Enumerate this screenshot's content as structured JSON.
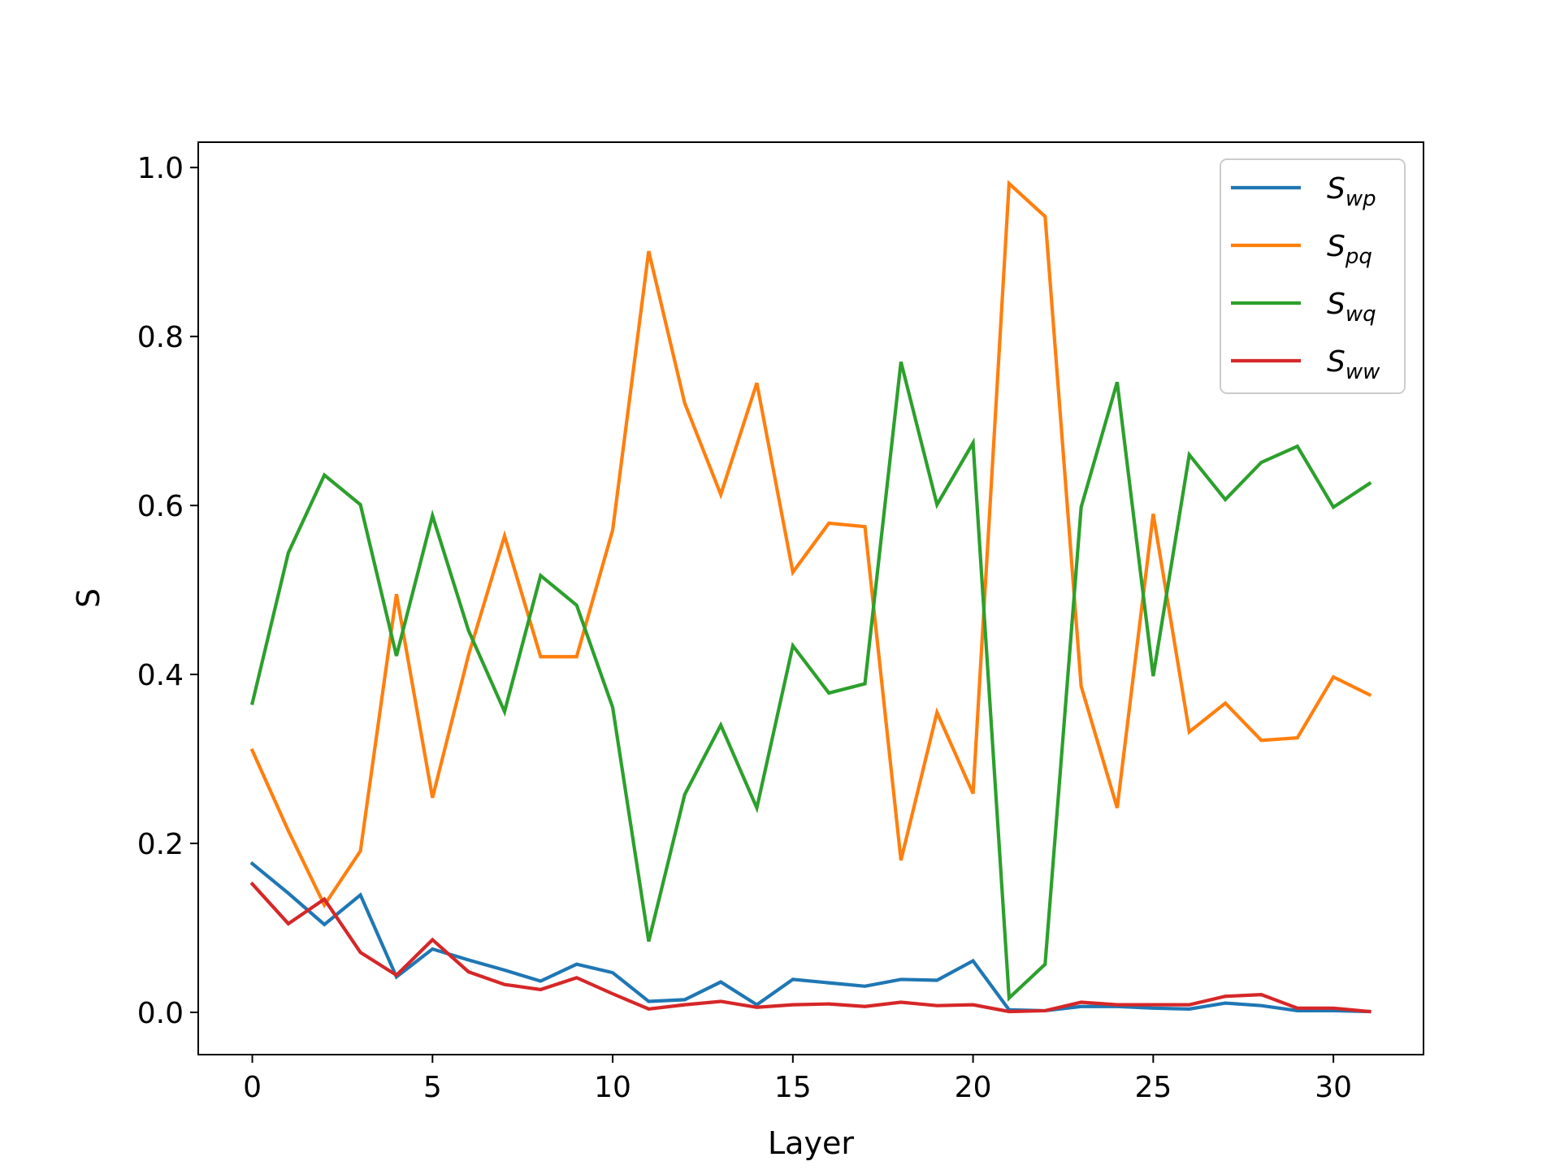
{
  "chart_data": {
    "type": "line",
    "xlabel": "Layer",
    "ylabel": "S",
    "xlim": [
      -1.5,
      32.5
    ],
    "ylim": [
      -0.05,
      1.03
    ],
    "xticks": [
      0,
      5,
      10,
      15,
      20,
      25,
      30
    ],
    "yticks": [
      0.0,
      0.2,
      0.4,
      0.6,
      0.8,
      1.0
    ],
    "xtick_labels": [
      "0",
      "5",
      "10",
      "15",
      "20",
      "25",
      "30"
    ],
    "ytick_labels": [
      "0.0",
      "0.2",
      "0.4",
      "0.6",
      "0.8",
      "1.0"
    ],
    "grid": false,
    "legend_position": "top-right",
    "x": [
      0,
      1,
      2,
      3,
      4,
      5,
      6,
      7,
      8,
      9,
      10,
      11,
      12,
      13,
      14,
      15,
      16,
      17,
      18,
      19,
      20,
      21,
      22,
      23,
      24,
      25,
      26,
      27,
      28,
      29,
      30,
      31
    ],
    "series": [
      {
        "name": "S_wp",
        "legend_main": "S",
        "legend_sub": "wp",
        "color": "#1f77b4",
        "values": [
          0.176,
          0.141,
          0.104,
          0.139,
          0.042,
          0.075,
          0.062,
          0.05,
          0.037,
          0.057,
          0.047,
          0.013,
          0.015,
          0.036,
          0.009,
          0.039,
          0.035,
          0.031,
          0.039,
          0.038,
          0.061,
          0.003,
          0.002,
          0.007,
          0.007,
          0.005,
          0.004,
          0.011,
          0.008,
          0.002,
          0.002,
          0.001
        ]
      },
      {
        "name": "S_pq",
        "legend_main": "S",
        "legend_sub": "pq",
        "color": "#ff7f0e",
        "values": [
          0.31,
          0.215,
          0.127,
          0.191,
          0.495,
          0.254,
          0.423,
          0.564,
          0.421,
          0.421,
          0.571,
          0.901,
          0.721,
          0.613,
          0.745,
          0.521,
          0.579,
          0.575,
          0.18,
          0.355,
          0.259,
          0.981,
          0.942,
          0.386,
          0.242,
          0.59,
          0.332,
          0.366,
          0.322,
          0.325,
          0.397,
          0.376
        ]
      },
      {
        "name": "S_wq",
        "legend_main": "S",
        "legend_sub": "wq",
        "color": "#2ca02c",
        "values": [
          0.366,
          0.544,
          0.636,
          0.601,
          0.422,
          0.588,
          0.452,
          0.356,
          0.517,
          0.482,
          0.361,
          0.084,
          0.258,
          0.34,
          0.242,
          0.434,
          0.378,
          0.389,
          0.77,
          0.601,
          0.674,
          0.017,
          0.057,
          0.598,
          0.746,
          0.398,
          0.66,
          0.607,
          0.651,
          0.67,
          0.598,
          0.626
        ]
      },
      {
        "name": "S_ww",
        "legend_main": "S",
        "legend_sub": "ww",
        "color": "#d62728",
        "values": [
          0.152,
          0.105,
          0.134,
          0.071,
          0.044,
          0.086,
          0.048,
          0.033,
          0.027,
          0.041,
          0.022,
          0.004,
          0.009,
          0.013,
          0.006,
          0.009,
          0.01,
          0.007,
          0.012,
          0.008,
          0.009,
          0.001,
          0.002,
          0.012,
          0.009,
          0.009,
          0.009,
          0.019,
          0.021,
          0.005,
          0.005,
          0.001
        ]
      }
    ]
  }
}
